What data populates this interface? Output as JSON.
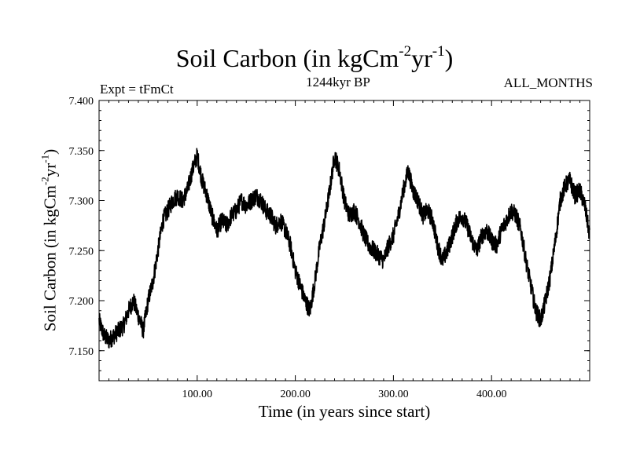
{
  "header": {
    "title_main": "Soil Carbon (in kgCm",
    "title_exp1": "-2",
    "title_mid": "yr",
    "title_exp2": "-1",
    "title_end": ")",
    "subtitle": "1244kyr BP",
    "expt": "Expt = tFmCt",
    "months": "ALL_MONTHS"
  },
  "chart_data": {
    "type": "line",
    "title": "Soil Carbon (in kgCm-2yr-1)",
    "subtitle": "1244kyr BP",
    "xlabel": "Time (in years since start)",
    "ylabel": "Soil Carbon (in kgCm-2yr-1)",
    "xlim": [
      0,
      500
    ],
    "ylim": [
      7.12,
      7.4
    ],
    "xticks": [
      100,
      200,
      300,
      400
    ],
    "xtick_labels": [
      "100.00",
      "200.00",
      "300.00",
      "400.00"
    ],
    "yticks": [
      7.15,
      7.2,
      7.25,
      7.3,
      7.35,
      7.4
    ],
    "ytick_labels": [
      "7.150",
      "7.200",
      "7.250",
      "7.300",
      "7.350",
      "7.400"
    ],
    "grid": false,
    "series": [
      {
        "name": "Soil Carbon",
        "color": "#000000",
        "noise_amplitude": 0.009,
        "x": [
          0,
          5,
          10,
          15,
          20,
          25,
          30,
          35,
          40,
          45,
          50,
          55,
          60,
          65,
          70,
          75,
          80,
          85,
          90,
          95,
          100,
          105,
          110,
          115,
          120,
          125,
          130,
          135,
          140,
          145,
          150,
          155,
          160,
          165,
          170,
          175,
          180,
          185,
          190,
          195,
          200,
          205,
          210,
          215,
          220,
          225,
          230,
          235,
          240,
          245,
          250,
          255,
          260,
          265,
          270,
          275,
          280,
          285,
          290,
          295,
          300,
          305,
          310,
          315,
          320,
          325,
          330,
          335,
          340,
          345,
          350,
          355,
          360,
          365,
          370,
          375,
          380,
          385,
          390,
          395,
          400,
          405,
          410,
          415,
          420,
          425,
          430,
          435,
          440,
          445,
          450,
          455,
          460,
          465,
          470,
          475,
          480,
          485,
          490,
          495,
          500
        ],
        "values": [
          7.18,
          7.165,
          7.16,
          7.165,
          7.17,
          7.175,
          7.19,
          7.2,
          7.185,
          7.17,
          7.2,
          7.22,
          7.25,
          7.28,
          7.29,
          7.3,
          7.305,
          7.3,
          7.31,
          7.33,
          7.345,
          7.32,
          7.305,
          7.285,
          7.27,
          7.28,
          7.275,
          7.285,
          7.29,
          7.3,
          7.295,
          7.3,
          7.305,
          7.3,
          7.29,
          7.285,
          7.275,
          7.28,
          7.27,
          7.255,
          7.23,
          7.215,
          7.2,
          7.19,
          7.22,
          7.255,
          7.28,
          7.31,
          7.345,
          7.33,
          7.3,
          7.285,
          7.29,
          7.28,
          7.265,
          7.255,
          7.25,
          7.245,
          7.24,
          7.255,
          7.265,
          7.285,
          7.31,
          7.33,
          7.31,
          7.3,
          7.285,
          7.29,
          7.28,
          7.255,
          7.24,
          7.25,
          7.265,
          7.28,
          7.285,
          7.275,
          7.26,
          7.25,
          7.265,
          7.27,
          7.26,
          7.255,
          7.27,
          7.28,
          7.29,
          7.285,
          7.27,
          7.24,
          7.215,
          7.19,
          7.18,
          7.2,
          7.225,
          7.26,
          7.3,
          7.315,
          7.32,
          7.305,
          7.31,
          7.295,
          7.265
        ]
      }
    ]
  }
}
